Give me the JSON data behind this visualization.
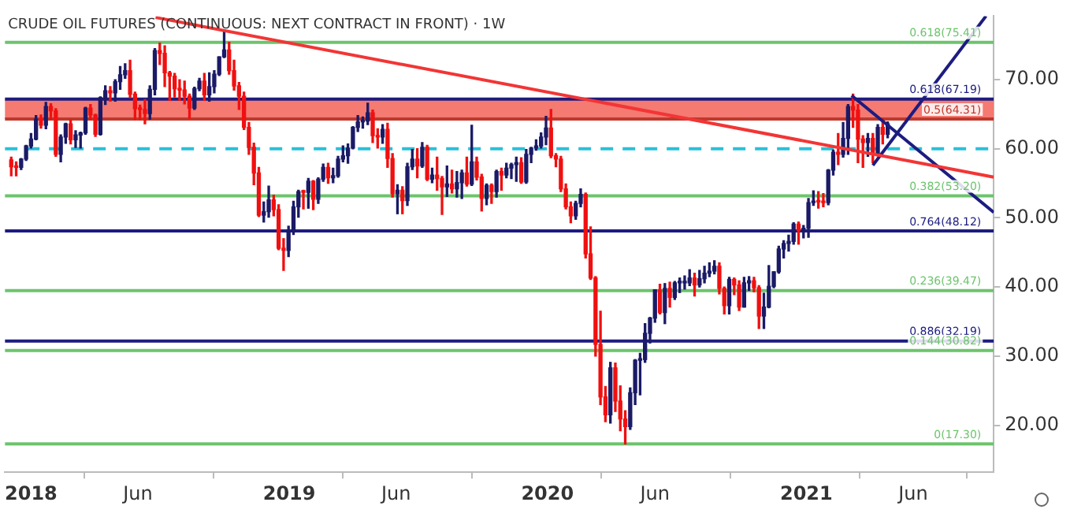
{
  "chart_data": {
    "type": "candlestick",
    "title": "CRUDE OIL FUTURES (CONTINUOUS: NEXT CONTRACT IN FRONT) · 1W",
    "xlim": [
      "2017-11-25",
      "2021-09-23"
    ],
    "xticks": [
      {
        "value": "2018-01-01",
        "label": "2018"
      },
      {
        "value": "2018-06-01",
        "label": "Jun"
      },
      {
        "value": "2019-01-01",
        "label": "2019"
      },
      {
        "value": "2019-06-01",
        "label": "Jun"
      },
      {
        "value": "2020-01-01",
        "label": "2020"
      },
      {
        "value": "2020-06-01",
        "label": "Jun"
      },
      {
        "value": "2021-01-01",
        "label": "2021"
      },
      {
        "value": "2021-06-01",
        "label": "Jun"
      }
    ],
    "ylim": [
      13.2,
      79.2
    ],
    "yticks": [
      {
        "value": 20,
        "label": "20.00"
      },
      {
        "value": 30,
        "label": "30.00"
      },
      {
        "value": 40,
        "label": "40.00"
      },
      {
        "value": 50,
        "label": "50.00"
      },
      {
        "value": 60,
        "label": "60.00"
      },
      {
        "value": 70,
        "label": "70.00"
      }
    ],
    "grid": false,
    "legend": false,
    "x": [
      "2017-12-04",
      "2017-12-11",
      "2017-12-18",
      "2017-12-25",
      "2018-01-01",
      "2018-01-08",
      "2018-01-15",
      "2018-01-22",
      "2018-01-29",
      "2018-02-05",
      "2018-02-12",
      "2018-02-19",
      "2018-02-26",
      "2018-03-05",
      "2018-03-12",
      "2018-03-19",
      "2018-03-26",
      "2018-04-02",
      "2018-04-09",
      "2018-04-16",
      "2018-04-23",
      "2018-04-30",
      "2018-05-07",
      "2018-05-14",
      "2018-05-21",
      "2018-05-28",
      "2018-06-04",
      "2018-06-11",
      "2018-06-18",
      "2018-06-25",
      "2018-07-02",
      "2018-07-09",
      "2018-07-16",
      "2018-07-23",
      "2018-07-30",
      "2018-08-06",
      "2018-08-13",
      "2018-08-20",
      "2018-08-27",
      "2018-09-03",
      "2018-09-10",
      "2018-09-17",
      "2018-09-24",
      "2018-10-01",
      "2018-10-08",
      "2018-10-15",
      "2018-10-22",
      "2018-10-29",
      "2018-11-05",
      "2018-11-12",
      "2018-11-19",
      "2018-11-26",
      "2018-12-03",
      "2018-12-10",
      "2018-12-17",
      "2018-12-24",
      "2018-12-31",
      "2019-01-07",
      "2019-01-14",
      "2019-01-21",
      "2019-01-28",
      "2019-02-04",
      "2019-02-11",
      "2019-02-18",
      "2019-02-25",
      "2019-03-04",
      "2019-03-11",
      "2019-03-18",
      "2019-03-25",
      "2019-04-01",
      "2019-04-08",
      "2019-04-15",
      "2019-04-22",
      "2019-04-29",
      "2019-05-06",
      "2019-05-13",
      "2019-05-20",
      "2019-05-27",
      "2019-06-03",
      "2019-06-10",
      "2019-06-17",
      "2019-06-24",
      "2019-07-01",
      "2019-07-08",
      "2019-07-15",
      "2019-07-22",
      "2019-07-29",
      "2019-08-05",
      "2019-08-12",
      "2019-08-19",
      "2019-08-26",
      "2019-09-02",
      "2019-09-09",
      "2019-09-16",
      "2019-09-23",
      "2019-09-30",
      "2019-10-07",
      "2019-10-14",
      "2019-10-21",
      "2019-10-28",
      "2019-11-04",
      "2019-11-11",
      "2019-11-18",
      "2019-11-25",
      "2019-12-02",
      "2019-12-09",
      "2019-12-16",
      "2019-12-23",
      "2019-12-30",
      "2020-01-06",
      "2020-01-13",
      "2020-01-20",
      "2020-01-27",
      "2020-02-03",
      "2020-02-10",
      "2020-02-17",
      "2020-02-24",
      "2020-03-02",
      "2020-03-09",
      "2020-03-16",
      "2020-03-23",
      "2020-03-30",
      "2020-04-06",
      "2020-04-13",
      "2020-04-20",
      "2020-04-27",
      "2020-05-04",
      "2020-05-11",
      "2020-05-18",
      "2020-05-25",
      "2020-06-01",
      "2020-06-08",
      "2020-06-15",
      "2020-06-22",
      "2020-06-29",
      "2020-07-06",
      "2020-07-13",
      "2020-07-20",
      "2020-07-27",
      "2020-08-03",
      "2020-08-10",
      "2020-08-17",
      "2020-08-24",
      "2020-08-31",
      "2020-09-07",
      "2020-09-14",
      "2020-09-21",
      "2020-09-28",
      "2020-10-05",
      "2020-10-12",
      "2020-10-19",
      "2020-10-26",
      "2020-11-02",
      "2020-11-09",
      "2020-11-16",
      "2020-11-23",
      "2020-11-30",
      "2020-12-07",
      "2020-12-14",
      "2020-12-21",
      "2020-12-28",
      "2021-01-04",
      "2021-01-11",
      "2021-01-18",
      "2021-01-25",
      "2021-02-01",
      "2021-02-08",
      "2021-02-15",
      "2021-02-22",
      "2021-03-01",
      "2021-03-08",
      "2021-03-15",
      "2021-03-22",
      "2021-03-29",
      "2021-04-05",
      "2021-04-12",
      "2021-04-19",
      "2021-04-26"
    ],
    "ohlc": [
      [
        58.4,
        58.8,
        56.1,
        57.4
      ],
      [
        57.4,
        58.1,
        56.1,
        57.3
      ],
      [
        57.3,
        58.6,
        57.0,
        58.5
      ],
      [
        58.5,
        60.5,
        58.3,
        60.4
      ],
      [
        60.4,
        62.2,
        60.1,
        61.4
      ],
      [
        61.4,
        64.8,
        61.3,
        64.3
      ],
      [
        64.3,
        64.9,
        63.0,
        63.4
      ],
      [
        63.4,
        66.7,
        62.9,
        66.1
      ],
      [
        66.1,
        66.5,
        64.2,
        65.5
      ],
      [
        65.5,
        65.8,
        58.9,
        59.2
      ],
      [
        59.2,
        62.0,
        58.1,
        61.7
      ],
      [
        61.7,
        63.7,
        60.8,
        63.6
      ],
      [
        63.6,
        64.2,
        60.7,
        61.3
      ],
      [
        61.3,
        62.6,
        60.2,
        62.0
      ],
      [
        62.0,
        62.4,
        60.1,
        62.3
      ],
      [
        62.3,
        66.0,
        62.1,
        65.9
      ],
      [
        65.9,
        66.4,
        64.2,
        64.9
      ],
      [
        64.9,
        65.0,
        61.8,
        62.1
      ],
      [
        62.1,
        67.5,
        62.0,
        67.4
      ],
      [
        67.4,
        69.1,
        66.4,
        68.4
      ],
      [
        68.4,
        69.0,
        66.9,
        68.1
      ],
      [
        68.1,
        70.0,
        66.9,
        69.7
      ],
      [
        69.7,
        71.9,
        68.6,
        70.7
      ],
      [
        70.7,
        72.3,
        70.2,
        71.3
      ],
      [
        71.3,
        72.8,
        67.4,
        67.9
      ],
      [
        67.9,
        68.2,
        64.2,
        65.8
      ],
      [
        65.8,
        66.3,
        64.2,
        65.7
      ],
      [
        65.7,
        67.1,
        63.6,
        65.1
      ],
      [
        65.1,
        69.1,
        64.3,
        68.6
      ],
      [
        68.6,
        74.5,
        67.8,
        74.2
      ],
      [
        74.2,
        75.3,
        72.2,
        73.8
      ],
      [
        73.8,
        74.9,
        69.0,
        71.0
      ],
      [
        71.0,
        71.2,
        67.0,
        70.5
      ],
      [
        70.5,
        70.9,
        67.5,
        68.7
      ],
      [
        68.7,
        70.0,
        67.0,
        68.5
      ],
      [
        68.5,
        69.8,
        66.5,
        67.6
      ],
      [
        67.6,
        67.9,
        64.4,
        65.9
      ],
      [
        65.9,
        68.9,
        65.7,
        68.7
      ],
      [
        68.7,
        70.2,
        68.4,
        69.8
      ],
      [
        69.8,
        70.9,
        67.0,
        67.8
      ],
      [
        67.8,
        71.0,
        66.9,
        69.0
      ],
      [
        69.0,
        71.3,
        68.1,
        70.8
      ],
      [
        70.8,
        73.3,
        70.6,
        73.3
      ],
      [
        73.3,
        76.9,
        73.2,
        74.3
      ],
      [
        74.3,
        75.4,
        70.8,
        71.3
      ],
      [
        71.3,
        72.8,
        68.5,
        69.1
      ],
      [
        69.1,
        69.6,
        65.7,
        67.6
      ],
      [
        67.6,
        68.2,
        62.8,
        63.1
      ],
      [
        63.1,
        63.8,
        59.2,
        60.2
      ],
      [
        60.2,
        60.8,
        54.8,
        56.5
      ],
      [
        56.5,
        57.3,
        50.2,
        50.4
      ],
      [
        50.4,
        52.3,
        49.4,
        50.9
      ],
      [
        50.9,
        54.6,
        50.1,
        52.6
      ],
      [
        52.6,
        53.3,
        50.3,
        51.2
      ],
      [
        51.2,
        51.9,
        45.4,
        45.6
      ],
      [
        45.6,
        47.0,
        42.4,
        45.3
      ],
      [
        45.3,
        48.8,
        44.4,
        48.0
      ],
      [
        48.0,
        52.4,
        47.6,
        51.6
      ],
      [
        51.6,
        54.0,
        50.1,
        53.8
      ],
      [
        53.8,
        54.0,
        51.3,
        53.7
      ],
      [
        53.7,
        55.7,
        51.4,
        55.3
      ],
      [
        55.3,
        55.4,
        51.2,
        52.7
      ],
      [
        52.7,
        55.8,
        52.1,
        55.6
      ],
      [
        55.6,
        57.8,
        55.3,
        57.3
      ],
      [
        57.3,
        57.9,
        55.0,
        55.8
      ],
      [
        55.8,
        57.2,
        55.1,
        56.1
      ],
      [
        56.1,
        58.9,
        55.9,
        58.5
      ],
      [
        58.5,
        60.4,
        58.1,
        59.0
      ],
      [
        59.0,
        60.7,
        57.9,
        60.1
      ],
      [
        60.1,
        63.2,
        60.0,
        63.1
      ],
      [
        63.1,
        64.8,
        62.5,
        63.9
      ],
      [
        63.9,
        64.6,
        63.0,
        64.0
      ],
      [
        64.0,
        66.6,
        63.5,
        65.2
      ],
      [
        65.2,
        65.6,
        60.9,
        61.9
      ],
      [
        61.9,
        62.9,
        60.1,
        61.7
      ],
      [
        61.7,
        63.5,
        60.8,
        62.8
      ],
      [
        62.8,
        63.7,
        57.3,
        58.6
      ],
      [
        58.6,
        59.3,
        53.0,
        53.5
      ],
      [
        53.5,
        54.8,
        50.6,
        54.0
      ],
      [
        54.0,
        54.5,
        50.6,
        52.5
      ],
      [
        52.5,
        57.9,
        51.8,
        57.4
      ],
      [
        57.4,
        59.9,
        57.0,
        58.5
      ],
      [
        58.5,
        60.0,
        55.8,
        57.5
      ],
      [
        57.5,
        60.9,
        57.3,
        60.2
      ],
      [
        60.2,
        60.5,
        55.4,
        55.6
      ],
      [
        55.6,
        57.2,
        55.1,
        56.2
      ],
      [
        56.2,
        58.8,
        54.0,
        55.7
      ],
      [
        55.7,
        56.0,
        50.5,
        54.5
      ],
      [
        54.5,
        57.5,
        53.1,
        54.9
      ],
      [
        54.9,
        56.9,
        53.6,
        54.2
      ],
      [
        54.2,
        56.7,
        53.0,
        55.1
      ],
      [
        55.1,
        56.9,
        52.8,
        56.5
      ],
      [
        56.5,
        58.8,
        54.6,
        54.9
      ],
      [
        54.9,
        63.4,
        54.7,
        58.1
      ],
      [
        58.1,
        58.8,
        55.5,
        55.9
      ],
      [
        55.9,
        56.3,
        51.0,
        52.8
      ],
      [
        52.8,
        54.9,
        51.9,
        54.7
      ],
      [
        54.7,
        54.9,
        52.1,
        53.8
      ],
      [
        53.8,
        56.9,
        53.0,
        56.7
      ],
      [
        56.7,
        57.2,
        54.0,
        56.2
      ],
      [
        56.2,
        57.9,
        55.8,
        57.2
      ],
      [
        57.2,
        57.9,
        55.7,
        57.7
      ],
      [
        57.7,
        58.8,
        55.3,
        58.0
      ],
      [
        58.0,
        58.7,
        55.0,
        55.2
      ],
      [
        55.2,
        59.9,
        55.0,
        59.2
      ],
      [
        59.2,
        60.2,
        58.0,
        60.1
      ],
      [
        60.1,
        61.3,
        59.8,
        60.4
      ],
      [
        60.4,
        62.3,
        60.1,
        61.7
      ],
      [
        61.7,
        64.7,
        60.6,
        63.0
      ],
      [
        63.0,
        65.7,
        58.7,
        59.0
      ],
      [
        59.0,
        59.3,
        57.4,
        58.5
      ],
      [
        58.5,
        58.9,
        53.8,
        54.2
      ],
      [
        54.2,
        54.9,
        51.3,
        51.6
      ],
      [
        51.6,
        52.3,
        49.3,
        50.3
      ],
      [
        50.3,
        52.4,
        49.8,
        52.1
      ],
      [
        52.1,
        54.2,
        51.6,
        53.4
      ],
      [
        53.4,
        53.6,
        44.2,
        44.8
      ],
      [
        44.8,
        48.7,
        41.1,
        41.3
      ],
      [
        41.3,
        41.5,
        30.0,
        31.7
      ],
      [
        31.7,
        36.5,
        23.0,
        24.1
      ],
      [
        24.1,
        25.6,
        20.5,
        21.5
      ],
      [
        21.5,
        29.1,
        20.3,
        28.3
      ],
      [
        28.3,
        29.0,
        22.0,
        23.5
      ],
      [
        23.5,
        25.7,
        19.2,
        20.9
      ],
      [
        20.9,
        22.1,
        17.3,
        19.8
      ],
      [
        19.8,
        25.4,
        19.4,
        24.7
      ],
      [
        24.7,
        29.5,
        23.0,
        29.4
      ],
      [
        29.4,
        30.4,
        24.4,
        29.5
      ],
      [
        29.5,
        34.7,
        29.1,
        33.3
      ],
      [
        33.3,
        35.6,
        31.9,
        35.5
      ],
      [
        35.5,
        39.6,
        34.9,
        39.6
      ],
      [
        39.6,
        40.4,
        36.1,
        36.3
      ],
      [
        36.3,
        40.5,
        34.7,
        39.8
      ],
      [
        39.8,
        40.7,
        37.1,
        38.5
      ],
      [
        38.5,
        40.8,
        38.2,
        40.6
      ],
      [
        40.6,
        41.3,
        39.2,
        40.6
      ],
      [
        40.6,
        41.6,
        39.7,
        40.6
      ],
      [
        40.6,
        42.5,
        40.2,
        41.3
      ],
      [
        41.3,
        42.0,
        38.7,
        40.3
      ],
      [
        40.3,
        42.4,
        40.0,
        41.2
      ],
      [
        41.2,
        43.0,
        40.6,
        42.0
      ],
      [
        42.0,
        43.5,
        41.5,
        42.3
      ],
      [
        42.3,
        43.8,
        41.9,
        43.0
      ],
      [
        43.0,
        43.5,
        39.0,
        39.8
      ],
      [
        39.8,
        40.0,
        36.1,
        37.3
      ],
      [
        37.3,
        41.4,
        36.1,
        41.1
      ],
      [
        41.1,
        41.3,
        38.9,
        40.3
      ],
      [
        40.3,
        40.9,
        36.6,
        37.1
      ],
      [
        37.1,
        41.4,
        37.1,
        40.6
      ],
      [
        40.6,
        41.5,
        39.5,
        40.9
      ],
      [
        40.9,
        41.4,
        39.3,
        39.9
      ],
      [
        39.9,
        40.2,
        34.0,
        35.8
      ],
      [
        35.8,
        39.1,
        34.0,
        37.1
      ],
      [
        37.1,
        43.1,
        37.0,
        40.1
      ],
      [
        40.1,
        42.2,
        39.9,
        42.2
      ],
      [
        42.2,
        45.9,
        42.0,
        45.5
      ],
      [
        45.5,
        46.7,
        44.2,
        46.3
      ],
      [
        46.3,
        47.5,
        45.2,
        46.6
      ],
      [
        46.6,
        49.3,
        46.2,
        49.1
      ],
      [
        49.1,
        49.4,
        46.2,
        48.2
      ],
      [
        48.2,
        48.9,
        47.1,
        48.5
      ],
      [
        48.5,
        52.8,
        47.2,
        52.2
      ],
      [
        52.2,
        53.9,
        51.8,
        52.4
      ],
      [
        52.4,
        53.8,
        51.4,
        52.3
      ],
      [
        52.3,
        53.5,
        51.6,
        52.2
      ],
      [
        52.2,
        57.0,
        51.9,
        56.9
      ],
      [
        56.9,
        59.8,
        56.2,
        59.5
      ],
      [
        59.5,
        62.2,
        57.7,
        59.2
      ],
      [
        59.2,
        63.8,
        58.8,
        61.5
      ],
      [
        61.5,
        66.4,
        59.2,
        66.1
      ],
      [
        66.1,
        67.9,
        63.1,
        65.6
      ],
      [
        65.6,
        66.4,
        58.0,
        61.4
      ],
      [
        61.4,
        61.9,
        57.3,
        60.9
      ],
      [
        60.9,
        62.2,
        58.9,
        61.5
      ],
      [
        61.5,
        62.2,
        58.0,
        59.3
      ],
      [
        59.3,
        63.5,
        59.0,
        63.1
      ],
      [
        63.1,
        64.3,
        60.7,
        62.1
      ],
      [
        62.1,
        63.9,
        61.6,
        63.6
      ]
    ],
    "series": [
      {
        "type": "line",
        "color": "#f23535",
        "x": [
          "2018-06-26",
          "2021-09-23"
        ],
        "values": [
          79.0,
          55.9
        ]
      },
      {
        "type": "line",
        "color": "#1c1c80",
        "x": [
          "2021-03-06",
          "2021-09-23"
        ],
        "values": [
          67.7,
          50.8
        ]
      },
      {
        "type": "line",
        "color": "#1c1c80",
        "x": [
          "2021-04-05",
          "2021-09-12"
        ],
        "values": [
          57.6,
          79.2
        ]
      }
    ],
    "bands": [
      {
        "axis": "y",
        "from": 64.31,
        "to": 67.19,
        "color": "#f47a72"
      }
    ],
    "ref_lines": [
      {
        "axis": "y",
        "value": 75.41,
        "label": "0.618(75.41)",
        "color": "#6cc46c"
      },
      {
        "axis": "y",
        "value": 67.19,
        "label": "0.618(67.19)",
        "color": "#1c1c80"
      },
      {
        "axis": "y",
        "value": 64.31,
        "label": "0.5(64.31)",
        "color": "#c0392b"
      },
      {
        "axis": "y",
        "value": 60,
        "label": null,
        "color": "#29c0d8",
        "line_style": "dashed"
      },
      {
        "axis": "y",
        "value": 53.2,
        "label": "0.382(53.20)",
        "color": "#6cc46c"
      },
      {
        "axis": "y",
        "value": 48.12,
        "label": "0.764(48.12)",
        "color": "#1c1c80"
      },
      {
        "axis": "y",
        "value": 39.47,
        "label": "0.236(39.47)",
        "color": "#6cc46c"
      },
      {
        "axis": "y",
        "value": 32.19,
        "label": "0.886(32.19)",
        "color": "#1c1c80"
      },
      {
        "axis": "y",
        "value": 30.82,
        "label": "0.144(30.82)",
        "color": "#6cc46c"
      },
      {
        "axis": "y",
        "value": 17.3,
        "label": "0(17.30)",
        "color": "#6cc46c"
      }
    ]
  }
}
